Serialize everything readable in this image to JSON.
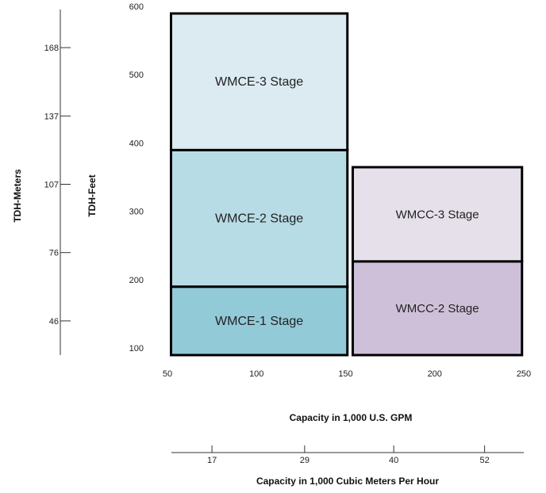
{
  "chart_data": {
    "type": "performance-range",
    "x_primary": {
      "label": "Capacity in 1,000 U.S. GPM",
      "range": [
        50,
        250
      ],
      "ticks": [
        50,
        100,
        150,
        200,
        250
      ]
    },
    "x_secondary": {
      "label": "Capacity in 1,000 Cubic Meters Per Hour",
      "ticks": [
        {
          "label": "17",
          "gpm": 75
        },
        {
          "label": "29",
          "gpm": 127
        },
        {
          "label": "40",
          "gpm": 177
        },
        {
          "label": "52",
          "gpm": 228
        }
      ]
    },
    "y_primary": {
      "label": "TDH-Feet",
      "range": [
        100,
        600
      ],
      "ticks": [
        100,
        200,
        300,
        400,
        500,
        600
      ]
    },
    "y_secondary": {
      "label": "TDH-Meters",
      "ticks": [
        {
          "label": "46",
          "feet": 150
        },
        {
          "label": "76",
          "feet": 250
        },
        {
          "label": "107",
          "feet": 350
        },
        {
          "label": "137",
          "feet": 450
        },
        {
          "label": "168",
          "feet": 550
        }
      ]
    },
    "regions": [
      {
        "name": "WMCE-3 Stage",
        "x": [
          52,
          151
        ],
        "y": [
          400,
          600
        ],
        "color": "#dcebf1"
      },
      {
        "name": "WMCE-2 Stage",
        "x": [
          52,
          151
        ],
        "y": [
          200,
          400
        ],
        "color": "#b8dce5"
      },
      {
        "name": "WMCE-1 Stage",
        "x": [
          52,
          151
        ],
        "y": [
          100,
          200
        ],
        "color": "#93cad8"
      },
      {
        "name": "WMCC-3 Stage",
        "x": [
          154,
          249
        ],
        "y": [
          237,
          375
        ],
        "color": "#e5e0ea"
      },
      {
        "name": "WMCC-2 Stage",
        "x": [
          154,
          249
        ],
        "y": [
          100,
          237
        ],
        "color": "#cfc0d9"
      }
    ],
    "grid": false
  }
}
